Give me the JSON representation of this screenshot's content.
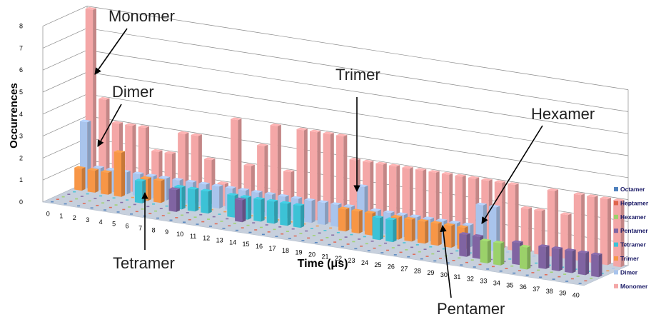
{
  "chart_data": {
    "type": "bar",
    "style": "3d-column",
    "xlabel": "Time (μs)",
    "ylabel": "Occurrences",
    "ylim": [
      0,
      8
    ],
    "yticks": [
      "0",
      "1",
      "2",
      "3",
      "4",
      "5",
      "6",
      "7",
      "8"
    ],
    "x": [
      "0",
      "1",
      "2",
      "3",
      "4",
      "5",
      "6",
      "7",
      "8",
      "9",
      "10",
      "11",
      "12",
      "13",
      "14",
      "15",
      "16",
      "17",
      "18",
      "19",
      "20",
      "21",
      "22",
      "23",
      "24",
      "25",
      "26",
      "27",
      "28",
      "29",
      "30",
      "31",
      "32",
      "33",
      "34",
      "35",
      "36",
      "37",
      "38",
      "39",
      "40"
    ],
    "legend_position": "right",
    "series": [
      {
        "name": "Octamer",
        "color": "#4f81bd",
        "values": [
          0,
          0,
          0,
          0,
          0,
          0,
          0,
          0,
          0,
          0,
          0,
          0,
          0,
          0,
          0,
          0,
          0,
          0,
          0,
          0,
          0,
          0,
          0,
          0,
          0,
          0,
          0,
          0,
          0,
          0,
          0,
          0,
          0,
          0,
          0,
          0,
          0,
          0,
          0,
          0,
          0
        ]
      },
      {
        "name": "Heptamer",
        "color": "#e0634c",
        "values": [
          0,
          0,
          0,
          0,
          0,
          0,
          0,
          0,
          0,
          0,
          0,
          0,
          0,
          0,
          0,
          0,
          0,
          0,
          0,
          0,
          0,
          0,
          0,
          0,
          0,
          0,
          0,
          0,
          0,
          0,
          0,
          0,
          0,
          0,
          0,
          0,
          0,
          0,
          0,
          0,
          0
        ]
      },
      {
        "name": "Hexamer",
        "color": "#9bd16a",
        "values": [
          0,
          0,
          0,
          0,
          0,
          0,
          0,
          0,
          0,
          0,
          0,
          0,
          0,
          0,
          0,
          0,
          0,
          0,
          0,
          0,
          0,
          0,
          0,
          0,
          0,
          0,
          0,
          0,
          0,
          0,
          0,
          0,
          1,
          1,
          0,
          1,
          0,
          0,
          0,
          0,
          0
        ]
      },
      {
        "name": "Pentamer",
        "color": "#8064a2",
        "values": [
          0,
          0,
          0,
          0,
          0,
          0,
          0,
          0,
          1,
          0,
          0,
          0,
          0,
          1,
          0,
          0,
          0,
          0,
          0,
          0,
          0,
          0,
          0,
          0,
          0,
          0,
          0,
          0,
          0,
          0,
          1,
          1,
          0,
          0,
          1,
          0,
          1,
          1,
          1,
          1,
          1
        ]
      },
      {
        "name": "Tetramer",
        "color": "#3cc2d6",
        "values": [
          0,
          0,
          0,
          0,
          0,
          1,
          0,
          0,
          1,
          1,
          1,
          0,
          1,
          1,
          1,
          1,
          1,
          1,
          0,
          0,
          0,
          0,
          0,
          1,
          1,
          0,
          0,
          0,
          0,
          0,
          0,
          0,
          0,
          0,
          0,
          0,
          0,
          0,
          0,
          0,
          0
        ]
      },
      {
        "name": "Trimer",
        "color": "#f79646",
        "values": [
          1,
          1,
          1,
          2,
          0,
          1,
          1,
          0,
          0,
          0,
          0,
          0,
          0,
          0,
          0,
          0,
          0,
          0,
          0,
          0,
          1,
          1,
          1,
          0,
          1,
          1,
          1,
          1,
          1,
          1,
          0,
          0,
          0,
          0,
          0,
          0,
          0,
          0,
          0,
          0,
          0
        ]
      },
      {
        "name": "Dimer",
        "color": "#a9c4ec",
        "values": [
          3,
          1,
          1,
          1,
          1,
          1,
          1,
          1,
          1,
          1,
          1,
          1,
          1,
          1,
          1,
          1,
          1,
          1,
          1,
          1,
          1,
          2,
          1,
          1,
          1,
          1,
          1,
          1,
          1,
          1,
          2,
          2,
          0,
          0,
          0,
          0,
          0,
          0,
          0,
          0,
          0
        ]
      },
      {
        "name": "Monomer",
        "color": "#f4a7a7",
        "values": [
          8,
          4,
          3,
          3,
          3,
          2,
          2,
          3,
          3,
          2,
          1,
          4,
          2,
          3,
          4,
          2,
          4,
          4,
          4,
          4,
          3,
          3,
          3,
          3,
          3,
          3,
          3,
          3,
          3,
          3,
          3,
          3,
          3,
          2,
          2,
          3,
          2,
          3,
          3,
          3,
          3
        ]
      }
    ],
    "annotations": [
      "Monomer",
      "Dimer",
      "Trimer",
      "Tetramer",
      "Pentamer",
      "Hexamer"
    ]
  }
}
